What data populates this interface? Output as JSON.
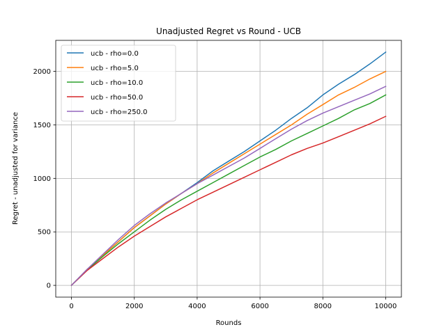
{
  "chart_data": {
    "type": "line",
    "title": "Unadjusted Regret vs Round - UCB",
    "xlabel": "Rounds",
    "ylabel": "Regret - unadjusted for variance",
    "xlim": [
      -500,
      10500
    ],
    "ylim": [
      -110,
      2290
    ],
    "xticks": [
      0,
      2000,
      4000,
      6000,
      8000,
      10000
    ],
    "yticks": [
      0,
      500,
      1000,
      1500,
      2000
    ],
    "xtick_labels": [
      "0",
      "2000",
      "4000",
      "6000",
      "8000",
      "10000"
    ],
    "ytick_labels": [
      "0",
      "500",
      "1000",
      "1500",
      "2000"
    ],
    "grid": true,
    "legend_position": "top-left",
    "series": [
      {
        "name": "ucb - rho=0.0",
        "color": "#1f77b4",
        "points": [
          [
            0,
            0
          ],
          [
            500,
            150
          ],
          [
            1000,
            280
          ],
          [
            1500,
            410
          ],
          [
            2000,
            540
          ],
          [
            2500,
            650
          ],
          [
            3000,
            760
          ],
          [
            3500,
            860
          ],
          [
            4000,
            960
          ],
          [
            4500,
            1070
          ],
          [
            5000,
            1160
          ],
          [
            5500,
            1250
          ],
          [
            6000,
            1350
          ],
          [
            6500,
            1450
          ],
          [
            7000,
            1560
          ],
          [
            7500,
            1660
          ],
          [
            8000,
            1780
          ],
          [
            8500,
            1880
          ],
          [
            9000,
            1970
          ],
          [
            9500,
            2070
          ],
          [
            10000,
            2180
          ]
        ]
      },
      {
        "name": "ucb - rho=5.0",
        "color": "#ff7f0e",
        "points": [
          [
            0,
            0
          ],
          [
            500,
            150
          ],
          [
            1000,
            280
          ],
          [
            1500,
            410
          ],
          [
            2000,
            540
          ],
          [
            2500,
            650
          ],
          [
            3000,
            760
          ],
          [
            3500,
            860
          ],
          [
            4000,
            950
          ],
          [
            4500,
            1050
          ],
          [
            5000,
            1140
          ],
          [
            5500,
            1230
          ],
          [
            6000,
            1320
          ],
          [
            6500,
            1410
          ],
          [
            7000,
            1500
          ],
          [
            7500,
            1600
          ],
          [
            8000,
            1690
          ],
          [
            8500,
            1780
          ],
          [
            9000,
            1850
          ],
          [
            9500,
            1930
          ],
          [
            10000,
            2000
          ]
        ]
      },
      {
        "name": "ucb - rho=10.0",
        "color": "#2ca02c",
        "points": [
          [
            0,
            0
          ],
          [
            500,
            145
          ],
          [
            1000,
            270
          ],
          [
            1500,
            390
          ],
          [
            2000,
            500
          ],
          [
            2500,
            610
          ],
          [
            3000,
            710
          ],
          [
            3500,
            800
          ],
          [
            4000,
            880
          ],
          [
            4500,
            960
          ],
          [
            5000,
            1040
          ],
          [
            5500,
            1120
          ],
          [
            6000,
            1200
          ],
          [
            6500,
            1270
          ],
          [
            7000,
            1350
          ],
          [
            7500,
            1420
          ],
          [
            8000,
            1490
          ],
          [
            8500,
            1560
          ],
          [
            9000,
            1640
          ],
          [
            9500,
            1700
          ],
          [
            10000,
            1780
          ]
        ]
      },
      {
        "name": "ucb - rho=50.0",
        "color": "#d62728",
        "points": [
          [
            0,
            0
          ],
          [
            500,
            140
          ],
          [
            1000,
            250
          ],
          [
            1500,
            360
          ],
          [
            2000,
            460
          ],
          [
            2500,
            550
          ],
          [
            3000,
            640
          ],
          [
            3500,
            720
          ],
          [
            4000,
            800
          ],
          [
            4500,
            870
          ],
          [
            5000,
            940
          ],
          [
            5500,
            1010
          ],
          [
            6000,
            1080
          ],
          [
            6500,
            1150
          ],
          [
            7000,
            1220
          ],
          [
            7500,
            1280
          ],
          [
            8000,
            1330
          ],
          [
            8500,
            1390
          ],
          [
            9000,
            1450
          ],
          [
            9500,
            1510
          ],
          [
            10000,
            1580
          ]
        ]
      },
      {
        "name": "ucb - rho=250.0",
        "color": "#9467bd",
        "points": [
          [
            0,
            0
          ],
          [
            500,
            150
          ],
          [
            1000,
            290
          ],
          [
            1500,
            430
          ],
          [
            2000,
            560
          ],
          [
            2500,
            670
          ],
          [
            3000,
            770
          ],
          [
            3500,
            860
          ],
          [
            4000,
            950
          ],
          [
            4500,
            1030
          ],
          [
            5000,
            1110
          ],
          [
            5500,
            1190
          ],
          [
            6000,
            1280
          ],
          [
            6500,
            1370
          ],
          [
            7000,
            1460
          ],
          [
            7500,
            1540
          ],
          [
            8000,
            1610
          ],
          [
            8500,
            1670
          ],
          [
            9000,
            1730
          ],
          [
            9500,
            1790
          ],
          [
            10000,
            1860
          ]
        ]
      }
    ]
  }
}
